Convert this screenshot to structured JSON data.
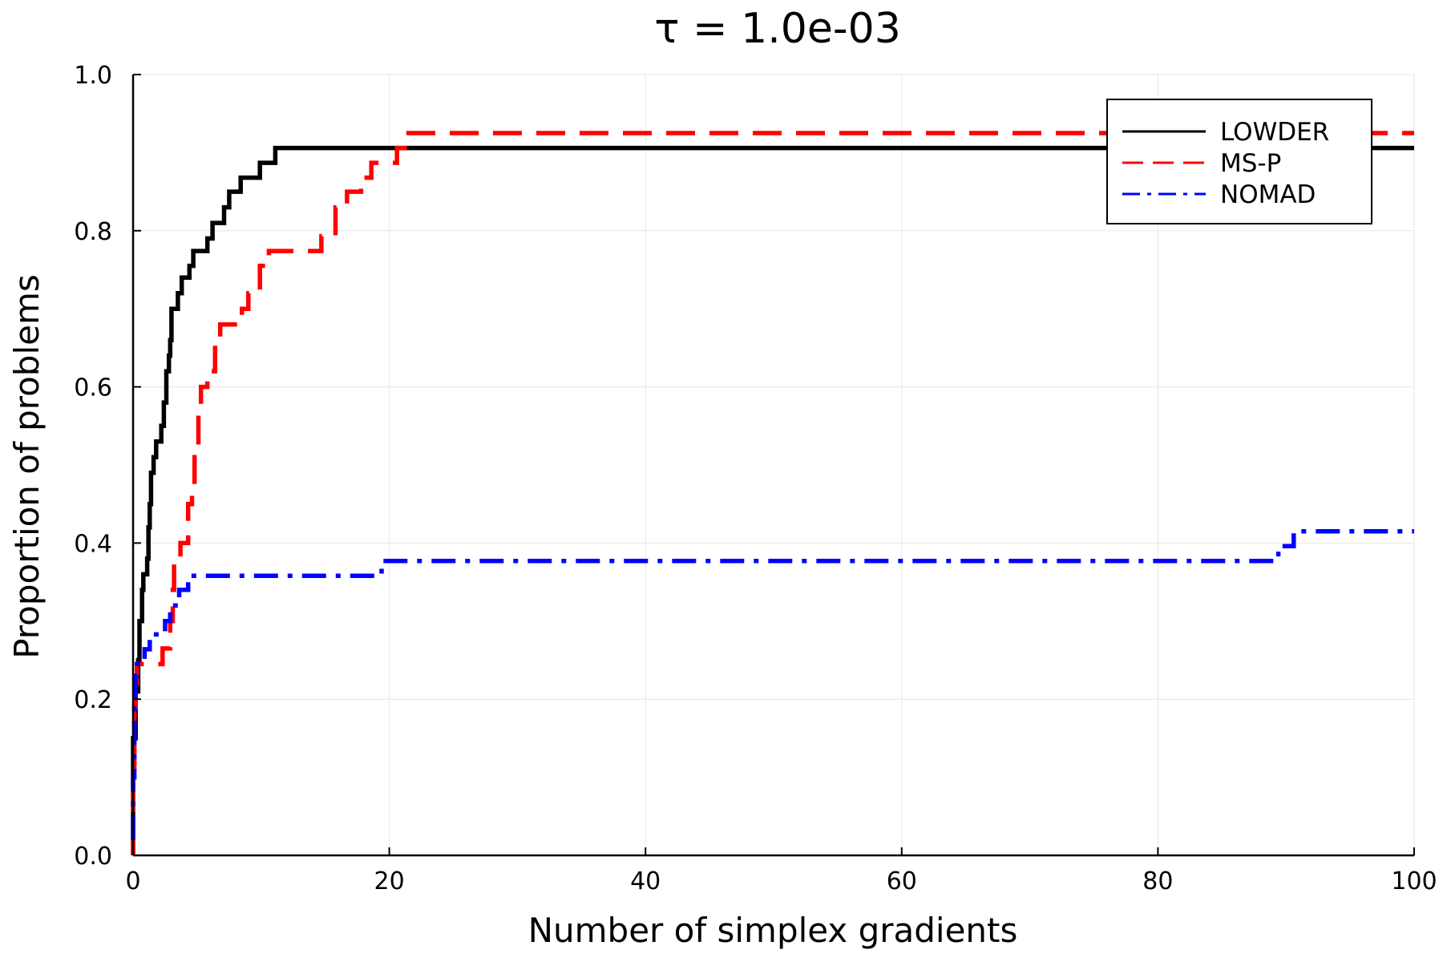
{
  "chart_data": {
    "type": "line",
    "title": "τ = 1.0e-03",
    "xlabel": "Number of simplex gradients",
    "ylabel": "Proportion of problems",
    "xlim": [
      0,
      100
    ],
    "ylim": [
      0.0,
      1.0
    ],
    "grid": true,
    "legend_position": "top-right",
    "xticks": [
      0,
      20,
      40,
      60,
      80,
      100
    ],
    "xtick_labels": [
      "0",
      "20",
      "40",
      "60",
      "80",
      "100"
    ],
    "yticks": [
      0.0,
      0.2,
      0.4,
      0.6,
      0.8,
      1.0
    ],
    "ytick_labels": [
      "0.0",
      "0.2",
      "0.4",
      "0.6",
      "0.8",
      "1.0"
    ],
    "series": [
      {
        "name": "LOWDER",
        "color": "#000000",
        "style": "solid",
        "points": [
          [
            0,
            0.0
          ],
          [
            0,
            0.15
          ],
          [
            0.2,
            0.15
          ],
          [
            0.2,
            0.21
          ],
          [
            0.4,
            0.21
          ],
          [
            0.4,
            0.25
          ],
          [
            0.5,
            0.25
          ],
          [
            0.5,
            0.3
          ],
          [
            0.7,
            0.3
          ],
          [
            0.7,
            0.34
          ],
          [
            0.8,
            0.34
          ],
          [
            0.8,
            0.36
          ],
          [
            1.1,
            0.36
          ],
          [
            1.1,
            0.38
          ],
          [
            1.2,
            0.38
          ],
          [
            1.2,
            0.42
          ],
          [
            1.3,
            0.42
          ],
          [
            1.3,
            0.45
          ],
          [
            1.4,
            0.45
          ],
          [
            1.4,
            0.49
          ],
          [
            1.6,
            0.49
          ],
          [
            1.6,
            0.51
          ],
          [
            1.8,
            0.51
          ],
          [
            1.8,
            0.53
          ],
          [
            2.2,
            0.53
          ],
          [
            2.2,
            0.55
          ],
          [
            2.4,
            0.55
          ],
          [
            2.4,
            0.58
          ],
          [
            2.6,
            0.58
          ],
          [
            2.6,
            0.62
          ],
          [
            2.8,
            0.62
          ],
          [
            2.8,
            0.64
          ],
          [
            2.9,
            0.64
          ],
          [
            2.9,
            0.66
          ],
          [
            3.0,
            0.66
          ],
          [
            3.0,
            0.7
          ],
          [
            3.5,
            0.7
          ],
          [
            3.5,
            0.72
          ],
          [
            3.8,
            0.72
          ],
          [
            3.8,
            0.74
          ],
          [
            4.4,
            0.74
          ],
          [
            4.4,
            0.755
          ],
          [
            4.7,
            0.755
          ],
          [
            4.7,
            0.774
          ],
          [
            5.8,
            0.774
          ],
          [
            5.8,
            0.79
          ],
          [
            6.2,
            0.79
          ],
          [
            6.2,
            0.81
          ],
          [
            7.1,
            0.81
          ],
          [
            7.1,
            0.83
          ],
          [
            7.5,
            0.83
          ],
          [
            7.5,
            0.85
          ],
          [
            8.4,
            0.85
          ],
          [
            8.4,
            0.868
          ],
          [
            9.9,
            0.868
          ],
          [
            9.9,
            0.887
          ],
          [
            11.1,
            0.887
          ],
          [
            11.1,
            0.906
          ],
          [
            100,
            0.906
          ]
        ]
      },
      {
        "name": "MS-P",
        "color": "#ff0000",
        "style": "dashed",
        "points": [
          [
            0,
            0.0
          ],
          [
            0,
            0.11
          ],
          [
            0.1,
            0.11
          ],
          [
            0.1,
            0.19
          ],
          [
            0.2,
            0.19
          ],
          [
            0.2,
            0.21
          ],
          [
            0.3,
            0.21
          ],
          [
            0.3,
            0.245
          ],
          [
            2.3,
            0.245
          ],
          [
            2.3,
            0.265
          ],
          [
            2.9,
            0.265
          ],
          [
            2.9,
            0.3
          ],
          [
            3.1,
            0.3
          ],
          [
            3.1,
            0.34
          ],
          [
            3.2,
            0.34
          ],
          [
            3.2,
            0.38
          ],
          [
            3.7,
            0.38
          ],
          [
            3.7,
            0.4
          ],
          [
            4.3,
            0.4
          ],
          [
            4.3,
            0.45
          ],
          [
            4.6,
            0.45
          ],
          [
            4.6,
            0.47
          ],
          [
            4.8,
            0.47
          ],
          [
            4.8,
            0.51
          ],
          [
            5.1,
            0.51
          ],
          [
            5.1,
            0.57
          ],
          [
            5.3,
            0.57
          ],
          [
            5.3,
            0.6
          ],
          [
            5.8,
            0.6
          ],
          [
            5.8,
            0.62
          ],
          [
            6.4,
            0.62
          ],
          [
            6.4,
            0.66
          ],
          [
            6.8,
            0.66
          ],
          [
            6.8,
            0.68
          ],
          [
            8.5,
            0.68
          ],
          [
            8.5,
            0.7
          ],
          [
            9.0,
            0.7
          ],
          [
            9.0,
            0.72
          ],
          [
            9.9,
            0.72
          ],
          [
            9.9,
            0.755
          ],
          [
            10.6,
            0.755
          ],
          [
            10.6,
            0.774
          ],
          [
            14.7,
            0.774
          ],
          [
            14.7,
            0.793
          ],
          [
            15.8,
            0.793
          ],
          [
            15.8,
            0.83
          ],
          [
            16.7,
            0.83
          ],
          [
            16.7,
            0.85
          ],
          [
            17.8,
            0.85
          ],
          [
            17.8,
            0.868
          ],
          [
            18.6,
            0.868
          ],
          [
            18.6,
            0.887
          ],
          [
            20.6,
            0.887
          ],
          [
            20.6,
            0.906
          ],
          [
            21.5,
            0.906
          ],
          [
            21.5,
            0.925
          ],
          [
            100,
            0.925
          ]
        ]
      },
      {
        "name": "NOMAD",
        "color": "#0000ff",
        "style": "dashdot",
        "points": [
          [
            0,
            0.02
          ],
          [
            0,
            0.1
          ],
          [
            0.1,
            0.1
          ],
          [
            0.1,
            0.2
          ],
          [
            0.2,
            0.2
          ],
          [
            0.2,
            0.23
          ],
          [
            0.3,
            0.23
          ],
          [
            0.3,
            0.245
          ],
          [
            0.9,
            0.245
          ],
          [
            0.9,
            0.264
          ],
          [
            1.3,
            0.264
          ],
          [
            1.3,
            0.283
          ],
          [
            2.5,
            0.283
          ],
          [
            2.5,
            0.3
          ],
          [
            2.9,
            0.3
          ],
          [
            2.9,
            0.32
          ],
          [
            3.6,
            0.32
          ],
          [
            3.6,
            0.34
          ],
          [
            4.3,
            0.34
          ],
          [
            4.3,
            0.358
          ],
          [
            19.4,
            0.358
          ],
          [
            19.4,
            0.377
          ],
          [
            89.4,
            0.377
          ],
          [
            89.4,
            0.396
          ],
          [
            90.6,
            0.396
          ],
          [
            90.6,
            0.415
          ],
          [
            100,
            0.415
          ]
        ]
      }
    ]
  }
}
